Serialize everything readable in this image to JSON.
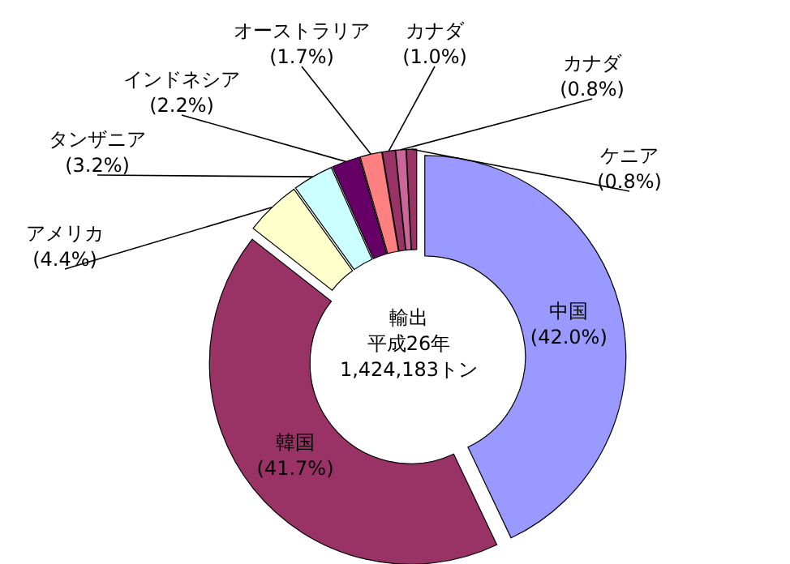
{
  "chart_data": {
    "type": "donut",
    "categories": [
      "中国",
      "韓国",
      "アメリカ",
      "タンザニア",
      "インドネシア",
      "オーストラリア",
      "カナダ",
      "カナダ",
      "ケニア"
    ],
    "values": [
      42.0,
      41.7,
      4.4,
      3.2,
      2.2,
      1.7,
      1.0,
      0.8,
      0.8
    ],
    "value_labels": [
      "(42.0%)",
      "(41.7%)",
      "(4.4%)",
      "(3.2%)",
      "(2.2%)",
      "(1.7%)",
      "(1.0%)",
      "(0.8%)",
      "(0.8%)"
    ],
    "colors": [
      "#9999ff",
      "#993366",
      "#ffffcc",
      "#ccffff",
      "#660066",
      "#ff8080",
      "#993366",
      "#cc6699",
      "#993366"
    ],
    "annotations": [
      "輸出",
      "平成26年",
      "1,424,183トン"
    ],
    "legend": false
  }
}
